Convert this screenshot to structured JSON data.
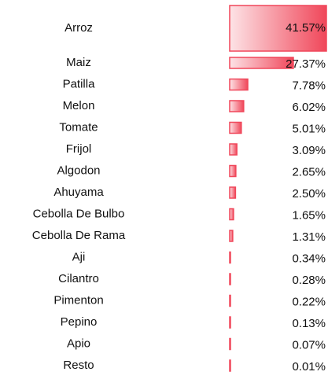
{
  "chart_data": {
    "type": "bar",
    "orientation": "horizontal",
    "color": "#f0475a",
    "categories": [
      "Arroz",
      "Maiz",
      "Patilla",
      "Melon",
      "Tomate",
      "Frijol",
      "Algodon",
      "Ahuyama",
      "Cebolla De Bulbo",
      "Cebolla De Rama",
      "Aji",
      "Cilantro",
      "Pimenton",
      "Pepino",
      "Apio",
      "Resto"
    ],
    "values": [
      41.57,
      27.37,
      7.78,
      6.02,
      5.01,
      3.09,
      2.65,
      2.5,
      1.65,
      1.31,
      0.34,
      0.28,
      0.22,
      0.13,
      0.07,
      0.01
    ],
    "value_labels": [
      "41.57%",
      "27.37%",
      "7.78%",
      "6.02%",
      "5.01%",
      "3.09%",
      "2.65%",
      "2.50%",
      "1.65%",
      "1.31%",
      "0.34%",
      "0.28%",
      "0.22%",
      "0.13%",
      "0.07%",
      "0.01%"
    ]
  }
}
